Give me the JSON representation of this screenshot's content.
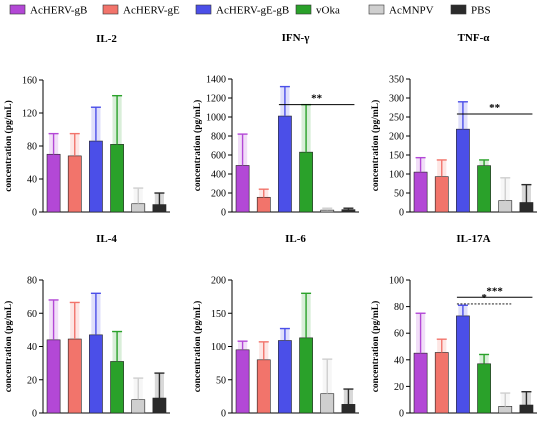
{
  "legend": {
    "items": [
      {
        "name": "AcHERV-gB",
        "color": "#b348d6"
      },
      {
        "name": "AcHERV-gE",
        "color": "#f2746b"
      },
      {
        "name": "AcHERV-gE-gB",
        "color": "#4b4fe8"
      },
      {
        "name": "vOka",
        "color": "#2aa12a"
      },
      {
        "name": "AcMNPV",
        "color": "#cfcfcf"
      },
      {
        "name": "PBS",
        "color": "#2b2b2b"
      }
    ]
  },
  "chart_data": [
    {
      "type": "bar",
      "title": "IL-2",
      "ylabel": "concentration (pg/mL)",
      "categories": [
        "AcHERV-gB",
        "AcHERV-gE",
        "AcHERV-gE-gB",
        "vOka",
        "AcMNPV",
        "PBS"
      ],
      "values": [
        70,
        68,
        86,
        82,
        10,
        9
      ],
      "errors": [
        25,
        27,
        41,
        59,
        19,
        14
      ],
      "ylim": [
        0,
        160
      ],
      "yticks": [
        0,
        40,
        80,
        120,
        160
      ],
      "yticklabels": [
        "0",
        "40",
        "80",
        "120",
        "160"
      ],
      "significance": []
    },
    {
      "type": "bar",
      "title": "IFN-γ",
      "ylabel": "concentration (pg/mL)",
      "categories": [
        "AcHERV-gB",
        "AcHERV-gE",
        "AcHERV-gE-gB",
        "vOka",
        "AcMNPV",
        "PBS"
      ],
      "values": [
        490,
        155,
        1010,
        630,
        20,
        25
      ],
      "errors": [
        330,
        85,
        310,
        500,
        20,
        15
      ],
      "ylim": [
        0,
        1400
      ],
      "yticks": [
        0,
        200,
        400,
        600,
        800,
        1000,
        1200,
        1400
      ],
      "yticklabels": [
        "0",
        "200",
        "400",
        "600",
        "800",
        "1000",
        "1200",
        "1400"
      ],
      "significance": [
        {
          "from": 2,
          "to": 5,
          "y": 1130,
          "label": "**",
          "dashed": false
        }
      ]
    },
    {
      "type": "bar",
      "title": "TNF-α",
      "ylabel": "concentration (pg/mL)",
      "categories": [
        "AcHERV-gB",
        "AcHERV-gE",
        "AcHERV-gE-gB",
        "vOka",
        "AcMNPV",
        "PBS"
      ],
      "values": [
        105,
        93,
        218,
        122,
        30,
        25
      ],
      "errors": [
        38,
        44,
        72,
        15,
        60,
        47
      ],
      "ylim": [
        0,
        350
      ],
      "yticks": [
        0,
        50,
        100,
        150,
        200,
        250,
        300,
        350
      ],
      "yticklabels": [
        "0",
        "50",
        "100",
        "150",
        "200",
        "250",
        "300",
        "350"
      ],
      "significance": [
        {
          "from": 2,
          "to": 5,
          "y": 258,
          "label": "**",
          "dashed": false
        }
      ]
    },
    {
      "type": "bar",
      "title": "IL-4",
      "ylabel": "concentration (pg/mL)",
      "categories": [
        "AcHERV-gB",
        "AcHERV-gE",
        "AcHERV-gE-gB",
        "vOka",
        "AcMNPV",
        "PBS"
      ],
      "values": [
        44,
        44.5,
        47,
        31,
        8,
        9
      ],
      "errors": [
        24,
        22,
        25,
        18,
        13,
        15
      ],
      "ylim": [
        0,
        80
      ],
      "yticks": [
        0,
        20,
        40,
        60,
        80
      ],
      "yticklabels": [
        "0",
        "20",
        "40",
        "60",
        "80"
      ],
      "significance": []
    },
    {
      "type": "bar",
      "title": "IL-6",
      "ylabel": "concentration (pg/mL)",
      "categories": [
        "AcHERV-gB",
        "AcHERV-gE",
        "AcHERV-gE-gB",
        "vOka",
        "AcMNPV",
        "PBS"
      ],
      "values": [
        95,
        80,
        109,
        113,
        29,
        13
      ],
      "errors": [
        13,
        27,
        18,
        67,
        52,
        23
      ],
      "ylim": [
        0,
        200
      ],
      "yticks": [
        0,
        50,
        100,
        150,
        200
      ],
      "yticklabels": [
        "0",
        "50",
        "100",
        "150",
        "200"
      ],
      "significance": []
    },
    {
      "type": "bar",
      "title": "IL-17A",
      "ylabel": "concentration (pg/mL)",
      "categories": [
        "AcHERV-gB",
        "AcHERV-gE",
        "AcHERV-gE-gB",
        "vOka",
        "AcMNPV",
        "PBS"
      ],
      "values": [
        45,
        45.5,
        73,
        37,
        5,
        6
      ],
      "errors": [
        30,
        10,
        8,
        7,
        10,
        10
      ],
      "ylim": [
        0,
        100
      ],
      "yticks": [
        0,
        20,
        40,
        60,
        80,
        100
      ],
      "yticklabels": [
        "0",
        "20",
        "40",
        "60",
        "80",
        "100"
      ],
      "significance": [
        {
          "from": 2,
          "to": 5,
          "y": 87,
          "label": "***",
          "dashed": false
        },
        {
          "from": 2,
          "to": 4,
          "y": 82,
          "label": "*",
          "dashed": true
        }
      ]
    }
  ]
}
